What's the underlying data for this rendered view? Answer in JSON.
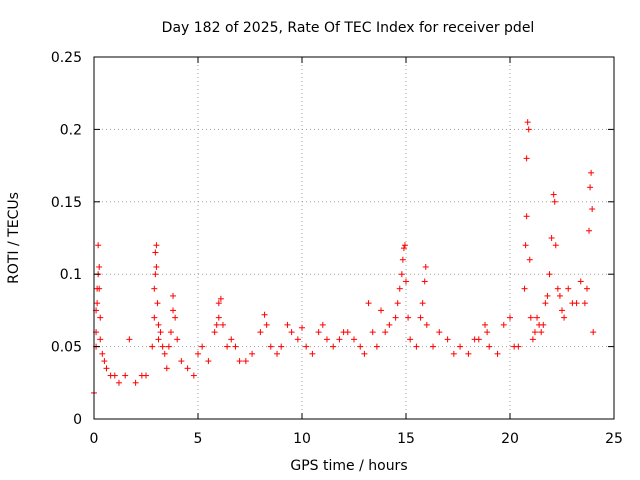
{
  "chart_data": {
    "type": "scatter",
    "title": "Day 182 of 2025, Rate Of TEC Index for receiver pdel",
    "xlabel": "GPS time / hours",
    "ylabel": "ROTI / TECUs",
    "xlim": [
      0,
      25
    ],
    "ylim": [
      0,
      0.25
    ],
    "xticks": [
      0,
      5,
      10,
      15,
      20,
      25
    ],
    "xtick_labels": [
      "0",
      "5",
      "10",
      "15",
      "20",
      "25"
    ],
    "yticks": [
      0,
      0.05,
      0.1,
      0.15,
      0.2,
      0.25
    ],
    "ytick_labels": [
      "0",
      "0.05",
      "0.1",
      "0.15",
      "0.2",
      "0.25"
    ],
    "grid": true,
    "marker": "+",
    "color": "#ff0000",
    "series": [
      {
        "name": "ROTI",
        "points": [
          [
            0.0,
            0.018
          ],
          [
            0.1,
            0.05
          ],
          [
            0.1,
            0.06
          ],
          [
            0.1,
            0.075
          ],
          [
            0.15,
            0.08
          ],
          [
            0.15,
            0.09
          ],
          [
            0.2,
            0.12
          ],
          [
            0.2,
            0.1
          ],
          [
            0.25,
            0.09
          ],
          [
            0.25,
            0.105
          ],
          [
            0.3,
            0.07
          ],
          [
            0.3,
            0.055
          ],
          [
            0.4,
            0.045
          ],
          [
            0.5,
            0.04
          ],
          [
            0.6,
            0.035
          ],
          [
            0.8,
            0.03
          ],
          [
            1.0,
            0.03
          ],
          [
            1.2,
            0.025
          ],
          [
            1.5,
            0.03
          ],
          [
            1.7,
            0.055
          ],
          [
            2.0,
            0.025
          ],
          [
            2.3,
            0.03
          ],
          [
            2.5,
            0.03
          ],
          [
            2.8,
            0.05
          ],
          [
            2.9,
            0.07
          ],
          [
            2.9,
            0.09
          ],
          [
            2.95,
            0.1
          ],
          [
            2.95,
            0.115
          ],
          [
            3.0,
            0.12
          ],
          [
            3.0,
            0.105
          ],
          [
            3.05,
            0.08
          ],
          [
            3.1,
            0.065
          ],
          [
            3.1,
            0.055
          ],
          [
            3.2,
            0.06
          ],
          [
            3.3,
            0.05
          ],
          [
            3.4,
            0.045
          ],
          [
            3.5,
            0.035
          ],
          [
            3.6,
            0.05
          ],
          [
            3.7,
            0.06
          ],
          [
            3.8,
            0.075
          ],
          [
            3.8,
            0.085
          ],
          [
            3.9,
            0.07
          ],
          [
            4.0,
            0.055
          ],
          [
            4.2,
            0.04
          ],
          [
            4.5,
            0.035
          ],
          [
            4.8,
            0.03
          ],
          [
            5.0,
            0.045
          ],
          [
            5.2,
            0.05
          ],
          [
            5.5,
            0.04
          ],
          [
            5.8,
            0.06
          ],
          [
            5.9,
            0.065
          ],
          [
            6.0,
            0.07
          ],
          [
            6.0,
            0.08
          ],
          [
            6.1,
            0.083
          ],
          [
            6.2,
            0.065
          ],
          [
            6.4,
            0.05
          ],
          [
            6.6,
            0.055
          ],
          [
            6.8,
            0.05
          ],
          [
            7.0,
            0.04
          ],
          [
            7.3,
            0.04
          ],
          [
            7.6,
            0.045
          ],
          [
            8.0,
            0.06
          ],
          [
            8.2,
            0.072
          ],
          [
            8.3,
            0.065
          ],
          [
            8.5,
            0.05
          ],
          [
            8.8,
            0.045
          ],
          [
            9.0,
            0.05
          ],
          [
            9.3,
            0.065
          ],
          [
            9.5,
            0.06
          ],
          [
            9.8,
            0.055
          ],
          [
            10.0,
            0.063
          ],
          [
            10.2,
            0.05
          ],
          [
            10.5,
            0.045
          ],
          [
            10.8,
            0.06
          ],
          [
            11.0,
            0.065
          ],
          [
            11.2,
            0.055
          ],
          [
            11.5,
            0.05
          ],
          [
            11.8,
            0.055
          ],
          [
            12.0,
            0.06
          ],
          [
            12.2,
            0.06
          ],
          [
            12.5,
            0.055
          ],
          [
            12.8,
            0.05
          ],
          [
            13.0,
            0.045
          ],
          [
            13.2,
            0.08
          ],
          [
            13.4,
            0.06
          ],
          [
            13.6,
            0.05
          ],
          [
            13.8,
            0.075
          ],
          [
            14.0,
            0.06
          ],
          [
            14.2,
            0.065
          ],
          [
            14.5,
            0.07
          ],
          [
            14.6,
            0.08
          ],
          [
            14.7,
            0.09
          ],
          [
            14.8,
            0.1
          ],
          [
            14.85,
            0.11
          ],
          [
            14.9,
            0.118
          ],
          [
            14.95,
            0.12
          ],
          [
            15.0,
            0.095
          ],
          [
            15.1,
            0.07
          ],
          [
            15.2,
            0.055
          ],
          [
            15.5,
            0.05
          ],
          [
            15.7,
            0.07
          ],
          [
            15.8,
            0.08
          ],
          [
            15.9,
            0.095
          ],
          [
            15.95,
            0.105
          ],
          [
            16.0,
            0.065
          ],
          [
            16.3,
            0.05
          ],
          [
            16.6,
            0.06
          ],
          [
            17.0,
            0.055
          ],
          [
            17.3,
            0.045
          ],
          [
            17.6,
            0.05
          ],
          [
            18.0,
            0.045
          ],
          [
            18.3,
            0.055
          ],
          [
            18.5,
            0.055
          ],
          [
            18.8,
            0.065
          ],
          [
            18.9,
            0.06
          ],
          [
            19.0,
            0.05
          ],
          [
            19.4,
            0.045
          ],
          [
            19.7,
            0.065
          ],
          [
            20.0,
            0.07
          ],
          [
            20.2,
            0.05
          ],
          [
            20.4,
            0.05
          ],
          [
            20.7,
            0.09
          ],
          [
            20.75,
            0.12
          ],
          [
            20.8,
            0.14
          ],
          [
            20.8,
            0.18
          ],
          [
            20.85,
            0.205
          ],
          [
            20.9,
            0.2
          ],
          [
            20.95,
            0.11
          ],
          [
            21.0,
            0.07
          ],
          [
            21.1,
            0.055
          ],
          [
            21.2,
            0.06
          ],
          [
            21.3,
            0.07
          ],
          [
            21.4,
            0.065
          ],
          [
            21.5,
            0.06
          ],
          [
            21.6,
            0.065
          ],
          [
            21.7,
            0.08
          ],
          [
            21.8,
            0.085
          ],
          [
            21.9,
            0.1
          ],
          [
            22.0,
            0.125
          ],
          [
            22.1,
            0.155
          ],
          [
            22.15,
            0.15
          ],
          [
            22.2,
            0.12
          ],
          [
            22.3,
            0.09
          ],
          [
            22.4,
            0.085
          ],
          [
            22.5,
            0.075
          ],
          [
            22.6,
            0.07
          ],
          [
            22.8,
            0.09
          ],
          [
            23.0,
            0.08
          ],
          [
            23.2,
            0.08
          ],
          [
            23.4,
            0.095
          ],
          [
            23.6,
            0.08
          ],
          [
            23.7,
            0.09
          ],
          [
            23.8,
            0.13
          ],
          [
            23.85,
            0.16
          ],
          [
            23.9,
            0.17
          ],
          [
            23.95,
            0.145
          ],
          [
            24.0,
            0.06
          ]
        ]
      }
    ]
  }
}
